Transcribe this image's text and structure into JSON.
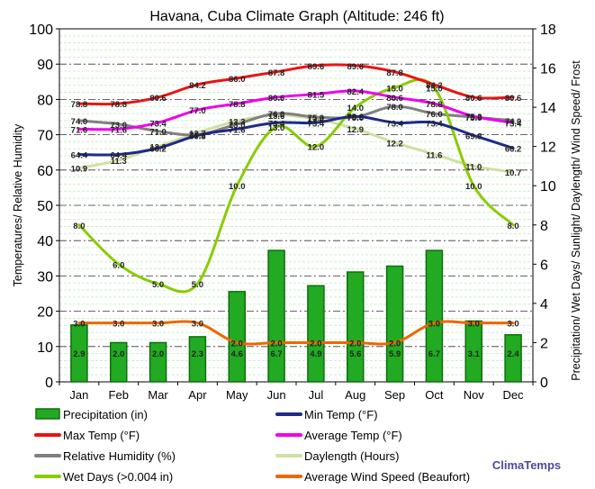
{
  "chart_data": {
    "type": "bar",
    "title": "Havana, Cuba Climate Graph (Altitude: 246 ft)",
    "ylabel_left": "Temperatures/ Relative Humidity",
    "ylabel_right": "Precipitation/ Wet Days/ Sunlight/ Daylength/ Wind Speed/ Frost",
    "ylim_left": [
      0,
      100
    ],
    "ylim_right": [
      0,
      18
    ],
    "yticks_left": [
      0,
      10,
      20,
      30,
      40,
      50,
      60,
      70,
      80,
      90,
      100
    ],
    "yticks_right": [
      0,
      2,
      4,
      6,
      8,
      10,
      12,
      14,
      16,
      18
    ],
    "grid": true,
    "categories": [
      "Jan",
      "Feb",
      "Mar",
      "Apr",
      "May",
      "Jun",
      "Jul",
      "Aug",
      "Sep",
      "Oct",
      "Nov",
      "Dec"
    ],
    "series": [
      {
        "name": "Precipitation (in)",
        "kind": "bar",
        "axis": "right",
        "color": "#22aa22",
        "values": [
          2.9,
          2.0,
          2.0,
          2.3,
          4.6,
          6.7,
          4.9,
          5.6,
          5.9,
          6.7,
          3.1,
          2.4
        ]
      },
      {
        "name": "Min Temp (°F)",
        "kind": "line",
        "axis": "left",
        "color": "#1f2a8a",
        "values": [
          64.4,
          64.4,
          66.2,
          69.8,
          71.6,
          73.4,
          73.4,
          75.2,
          73.4,
          73.4,
          69.8,
          66.2
        ]
      },
      {
        "name": "Max Temp (°F)",
        "kind": "line",
        "axis": "left",
        "color": "#ee1111",
        "values": [
          78.8,
          78.8,
          80.6,
          84.2,
          86.0,
          87.8,
          89.6,
          89.6,
          87.8,
          84.2,
          80.6,
          80.6
        ]
      },
      {
        "name": "Average Temp (°F)",
        "kind": "line",
        "axis": "left",
        "color": "#ee00ee",
        "values": [
          71.6,
          71.6,
          73.4,
          77.0,
          78.8,
          80.6,
          81.5,
          82.4,
          80.6,
          78.8,
          75.2,
          73.4
        ]
      },
      {
        "name": "Relative Humidity (%)",
        "kind": "line",
        "axis": "left",
        "color": "#808080",
        "values": [
          74.0,
          73.0,
          71.0,
          70.0,
          73.0,
          76.0,
          75.0,
          75.0,
          78.0,
          76.0,
          75.0,
          74.0
        ]
      },
      {
        "name": "Daylength (Hours)",
        "kind": "line",
        "axis": "right",
        "color": "#cfe0a0",
        "values": [
          10.9,
          11.3,
          12.0,
          12.7,
          13.3,
          13.6,
          13.4,
          12.9,
          12.2,
          11.6,
          11.0,
          10.7
        ]
      },
      {
        "name": "Wet Days (>0.004 in)",
        "kind": "line",
        "axis": "right",
        "color": "#88cc00",
        "values": [
          8.0,
          6.0,
          5.0,
          5.0,
          10.0,
          13.0,
          12.0,
          14.0,
          15.0,
          15.0,
          10.0,
          8.0
        ]
      },
      {
        "name": "Average Wind Speed (Beaufort)",
        "kind": "line",
        "axis": "right",
        "color": "#ee6600",
        "values": [
          3.0,
          3.0,
          3.0,
          3.0,
          2.0,
          2.0,
          2.0,
          2.0,
          2.0,
          3.0,
          3.0,
          3.0
        ]
      }
    ]
  },
  "legend": [
    {
      "label": "Precipitation (in)",
      "color": "#22aa22",
      "shape": "bar"
    },
    {
      "label": "Min Temp (°F)",
      "color": "#1f2a8a",
      "shape": "line"
    },
    {
      "label": "Max Temp (°F)",
      "color": "#ee1111",
      "shape": "line"
    },
    {
      "label": "Average Temp (°F)",
      "color": "#ee00ee",
      "shape": "line"
    },
    {
      "label": "Relative Humidity (%)",
      "color": "#808080",
      "shape": "line"
    },
    {
      "label": "Daylength (Hours)",
      "color": "#cfe0a0",
      "shape": "line"
    },
    {
      "label": "Wet Days (>0.004 in)",
      "color": "#88cc00",
      "shape": "line"
    },
    {
      "label": "Average Wind Speed (Beaufort)",
      "color": "#ee6600",
      "shape": "line"
    }
  ],
  "brand": {
    "label": "ClimaTemps",
    "color": "#4a4a9a"
  }
}
